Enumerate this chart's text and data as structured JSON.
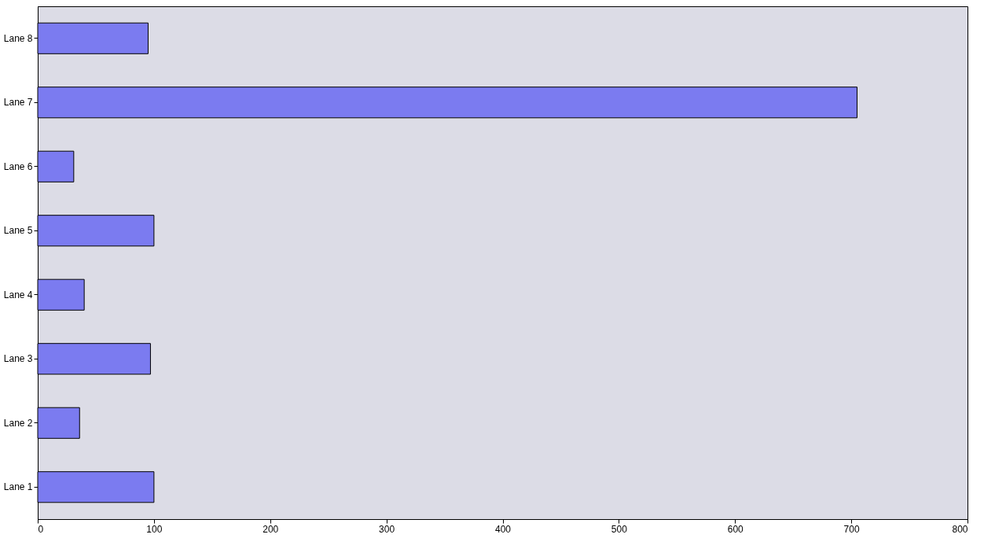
{
  "chart_data": {
    "type": "bar",
    "orientation": "horizontal",
    "categories": [
      "Lane 8",
      "Lane 7",
      "Lane 6",
      "Lane 5",
      "Lane 4",
      "Lane 3",
      "Lane 2",
      "Lane 1"
    ],
    "values": [
      95,
      705,
      31,
      100,
      40,
      97,
      36,
      100
    ],
    "color": "#7b7bf0",
    "xlim": [
      0,
      800
    ],
    "xticks": [
      0,
      100,
      200,
      300,
      400,
      500,
      600,
      700,
      800
    ],
    "grid": false
  }
}
